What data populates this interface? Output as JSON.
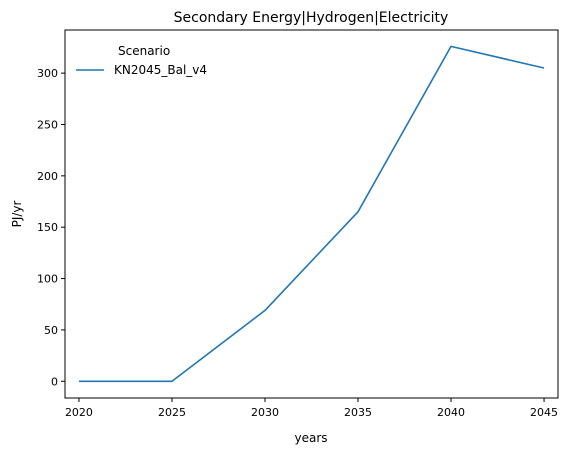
{
  "chart_data": {
    "type": "line",
    "title": "Secondary Energy|Hydrogen|Electricity",
    "xlabel": "years",
    "ylabel": "PJ/yr",
    "x": [
      2020,
      2025,
      2030,
      2035,
      2040,
      2045
    ],
    "xticks": [
      "2020",
      "2025",
      "2030",
      "2035",
      "2040",
      "2045"
    ],
    "yticks": [
      "0",
      "50",
      "100",
      "150",
      "200",
      "250",
      "300"
    ],
    "xlim": [
      2019.25,
      2045.75
    ],
    "ylim": [
      -16.3,
      342.0
    ],
    "grid": false,
    "legend": {
      "title": "Scenario",
      "placement": "top-left"
    },
    "series": [
      {
        "name": "KN2045_Bal_v4",
        "color": "#1f77b4",
        "values": [
          0,
          0,
          69,
          165,
          326,
          305
        ]
      }
    ]
  }
}
